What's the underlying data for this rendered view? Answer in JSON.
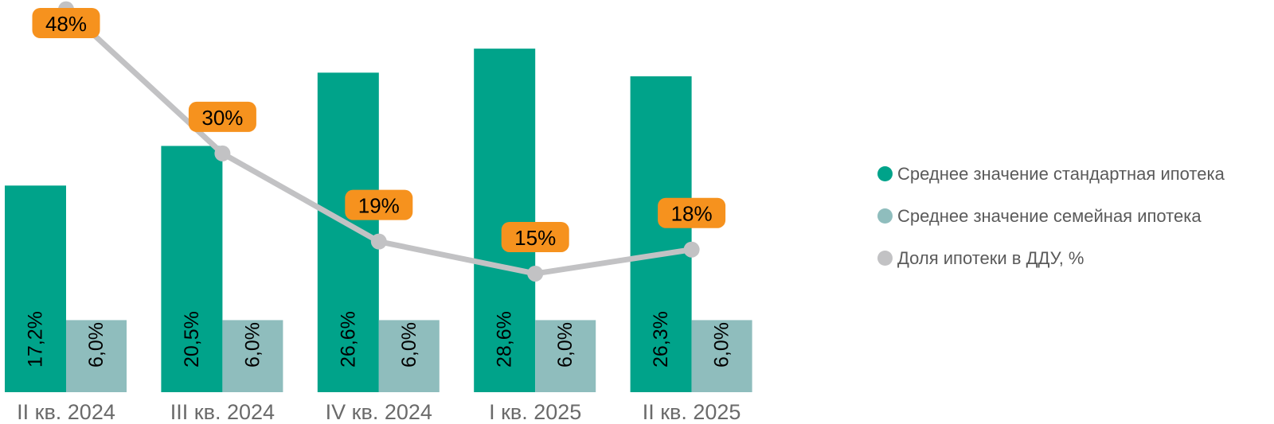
{
  "legend": {
    "items": [
      {
        "label": "Среднее значение стандартная ипотека",
        "color": "#00A38A"
      },
      {
        "label": "Среднее значение семейная ипотека",
        "color": "#8FBDBD"
      },
      {
        "label": "Доля ипотеки в ДДУ, %",
        "color": "#C2C2C4"
      }
    ]
  },
  "chart_data": {
    "type": "bar",
    "subtype": "grouped-bars-with-line",
    "title": "",
    "xlabel": "",
    "ylabel": "",
    "grid": false,
    "axes_visible": false,
    "legend_position": "right",
    "categories": [
      "II кв. 2024",
      "III кв. 2024",
      "IV кв. 2024",
      "I кв. 2025",
      "II кв. 2025"
    ],
    "series": [
      {
        "name": "Среднее значение стандартная ипотека",
        "type": "bar",
        "color": "#00A38A",
        "values": [
          17.2,
          20.5,
          26.6,
          28.6,
          26.3
        ],
        "labels": [
          "17,2%",
          "20,5%",
          "26,6%",
          "28,6%",
          "26,3%"
        ]
      },
      {
        "name": "Среднее значение семейная ипотека",
        "type": "bar",
        "color": "#8FBDBD",
        "values": [
          6.0,
          6.0,
          6.0,
          6.0,
          6.0
        ],
        "labels": [
          "6,0%",
          "6,0%",
          "6,0%",
          "6,0%",
          "6,0%"
        ]
      },
      {
        "name": "Доля ипотеки в ДДУ, %",
        "type": "line",
        "color": "#C2C2C4",
        "values": [
          48,
          30,
          19,
          15,
          18
        ],
        "labels": [
          "48%",
          "30%",
          "19%",
          "15%",
          "18%"
        ],
        "label_bg": "#F6921E",
        "label_text_color": "#000000"
      }
    ],
    "bar_value_label_color": "#000000",
    "category_label_color": "#6A6A6A",
    "bar_axis_range": [
      0,
      32.6
    ],
    "line_axis_range": [
      0,
      49.2
    ]
  }
}
